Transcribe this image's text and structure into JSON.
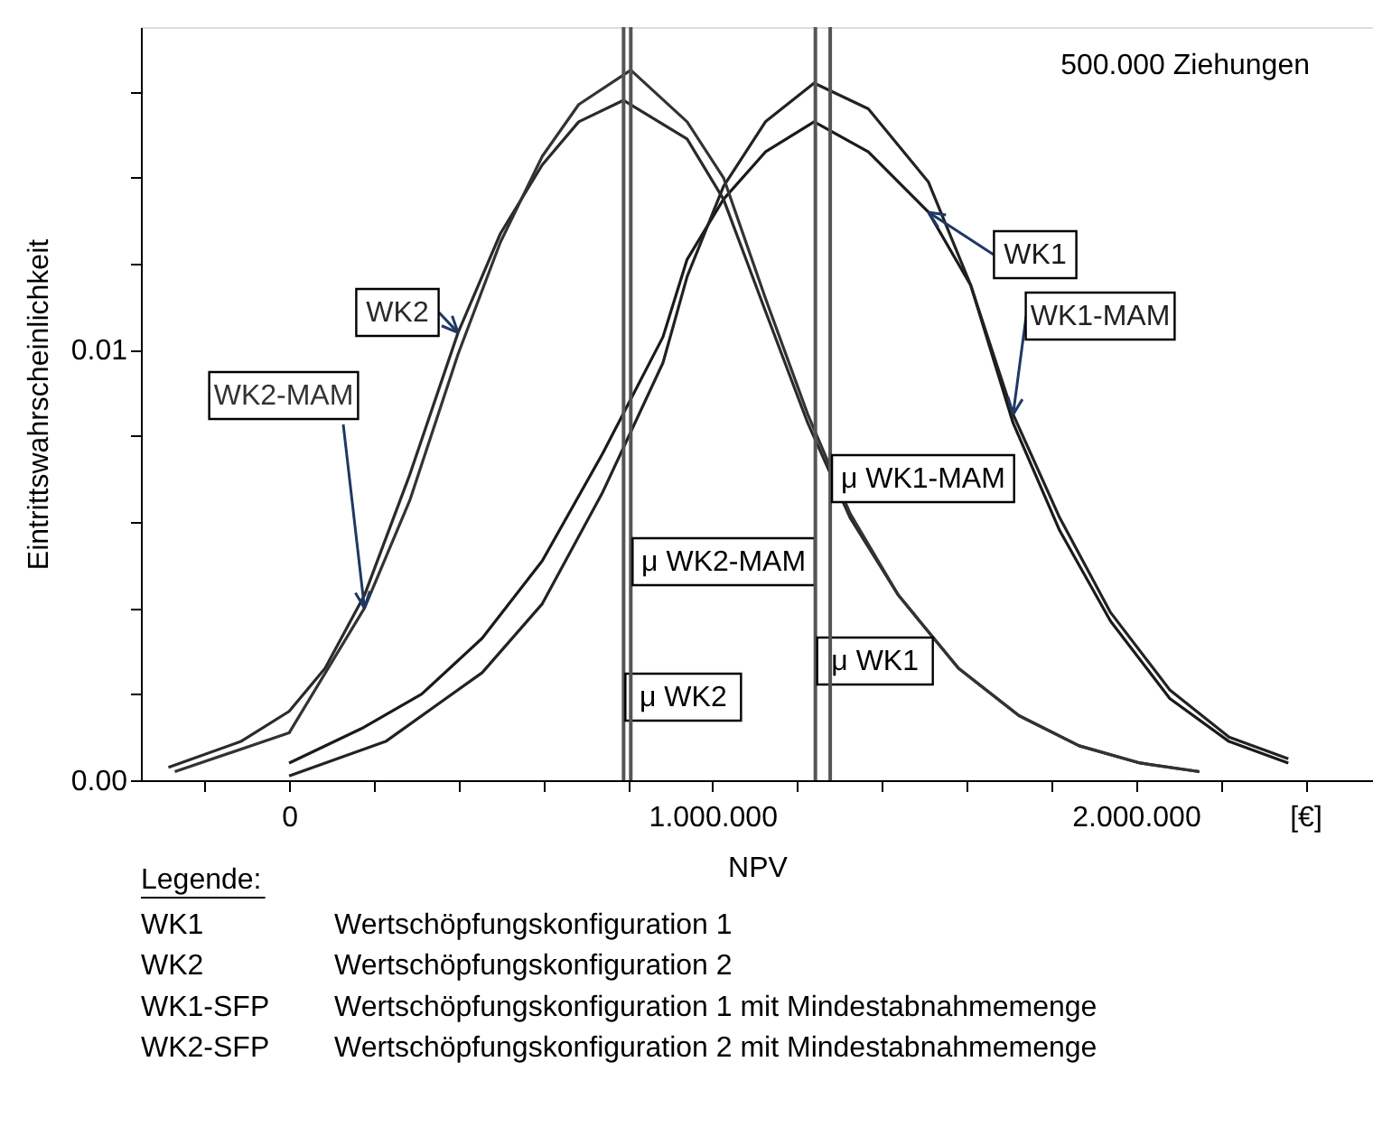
{
  "chart_data": {
    "type": "line",
    "xlabel": "NPV",
    "ylabel": "Eintrittswahrscheinlichkeit",
    "xlim": [
      -350000,
      2560000
    ],
    "ylim": [
      0,
      0.0175
    ],
    "xticks": [
      {
        "value": -200000,
        "label": null
      },
      0,
      {
        "value": 200000,
        "label": null
      },
      {
        "value": 400000,
        "label": null
      },
      {
        "value": 600000,
        "label": null
      },
      {
        "value": 800000,
        "label": null
      },
      {
        "value": 1000000,
        "label": "1.000.000"
      },
      {
        "value": 1200000,
        "label": null
      },
      {
        "value": 1400000,
        "label": null
      },
      {
        "value": 1600000,
        "label": null
      },
      {
        "value": 1800000,
        "label": null
      },
      {
        "value": 2000000,
        "label": "2.000.000"
      },
      {
        "value": 2200000,
        "label": null
      },
      {
        "value": 2400000,
        "label": "[€]"
      }
    ],
    "yticks": [
      {
        "value": 0,
        "label": "0.00"
      },
      {
        "value": 0.002,
        "label": null
      },
      {
        "value": 0.004,
        "label": null
      },
      {
        "value": 0.006,
        "label": null
      },
      {
        "value": 0.008,
        "label": null
      },
      {
        "value": 0.01,
        "label": "0.01"
      },
      {
        "value": 0.012,
        "label": null
      },
      {
        "value": 0.014,
        "label": null
      },
      {
        "value": 0.016,
        "label": null
      }
    ],
    "grid": false,
    "marker": "none",
    "line_style": "solid",
    "series": [
      {
        "name": "WK1",
        "color": "#1a1a1a",
        "x": [
          0,
          171000,
          313000,
          456000,
          598000,
          741000,
          883000,
          940000,
          1026000,
          1125000,
          1240000,
          1368000,
          1510000,
          1610000,
          1710000,
          1820000,
          1940000,
          2080000,
          2220000,
          2360000
        ],
        "values": [
          0.0004,
          0.0012,
          0.002,
          0.0033,
          0.0051,
          0.0076,
          0.0103,
          0.0121,
          0.0135,
          0.0146,
          0.0153,
          0.0146,
          0.0132,
          0.0115,
          0.0083,
          0.0058,
          0.0037,
          0.0019,
          0.0009,
          0.0004
        ]
      },
      {
        "name": "WK1-MAM",
        "color": "#222222",
        "x": [
          0,
          228000,
          456000,
          598000,
          741000,
          883000,
          940000,
          1026000,
          1125000,
          1240000,
          1368000,
          1510000,
          1610000,
          1710000,
          1820000,
          1940000,
          2080000,
          2220000,
          2360000
        ],
        "values": [
          0.0001,
          0.0009,
          0.0025,
          0.0041,
          0.0067,
          0.0097,
          0.0117,
          0.0138,
          0.0153,
          0.0162,
          0.0156,
          0.0139,
          0.0115,
          0.0085,
          0.0061,
          0.0039,
          0.0021,
          0.001,
          0.0005
        ]
      },
      {
        "name": "WK2",
        "color": "#2a2a2a",
        "x": [
          -285000,
          -114000,
          0,
          85000,
          178000,
          285000,
          399000,
          499000,
          598000,
          684000,
          790000,
          940000,
          1026000,
          1125000,
          1225000,
          1325000,
          1439000,
          1581000,
          1724000,
          1866000,
          2010000,
          2150000
        ],
        "values": [
          0.0003,
          0.0009,
          0.0016,
          0.0026,
          0.0043,
          0.0071,
          0.0104,
          0.0127,
          0.0143,
          0.0153,
          0.0158,
          0.0149,
          0.0135,
          0.0109,
          0.0083,
          0.0061,
          0.0043,
          0.0026,
          0.0015,
          0.0008,
          0.0004,
          0.0002
        ]
      },
      {
        "name": "WK2-MAM",
        "color": "#333333",
        "x": [
          -270000,
          0,
          178000,
          285000,
          399000,
          499000,
          598000,
          684000,
          807000,
          940000,
          1026000,
          1125000,
          1225000,
          1325000,
          1439000,
          1581000,
          1724000,
          1866000,
          2010000,
          2150000
        ],
        "values": [
          0.0002,
          0.0011,
          0.004,
          0.0065,
          0.0099,
          0.0125,
          0.0145,
          0.0157,
          0.0165,
          0.0153,
          0.014,
          0.0112,
          0.0085,
          0.0062,
          0.0043,
          0.0026,
          0.0015,
          0.0008,
          0.0004,
          0.0002
        ]
      }
    ],
    "ref_lines": [
      {
        "axis": "x",
        "value": 790000,
        "label": "μ WK2",
        "color": "#555555"
      },
      {
        "axis": "x",
        "value": 807000,
        "label": "μ WK2-MAM",
        "color": "#555555"
      },
      {
        "axis": "x",
        "value": 1243000,
        "label": "μ WK1",
        "color": "#555555"
      },
      {
        "axis": "x",
        "value": 1278000,
        "label": "μ WK1-MAM",
        "color": "#555555"
      }
    ],
    "annotations": [
      "500.000 Ziehungen",
      "Legende:",
      "WK1",
      "Wertschöpfungskonfiguration 1",
      "WK2",
      "Wertschöpfungskonfiguration 2",
      "WK1-SFP",
      "Wertschöpfungskonfiguration 1 mit Mindestabnahmemenge",
      "WK2-SFP",
      "Wertschöpfungskonfiguration 2 mit Mindestabnahmemenge"
    ]
  }
}
